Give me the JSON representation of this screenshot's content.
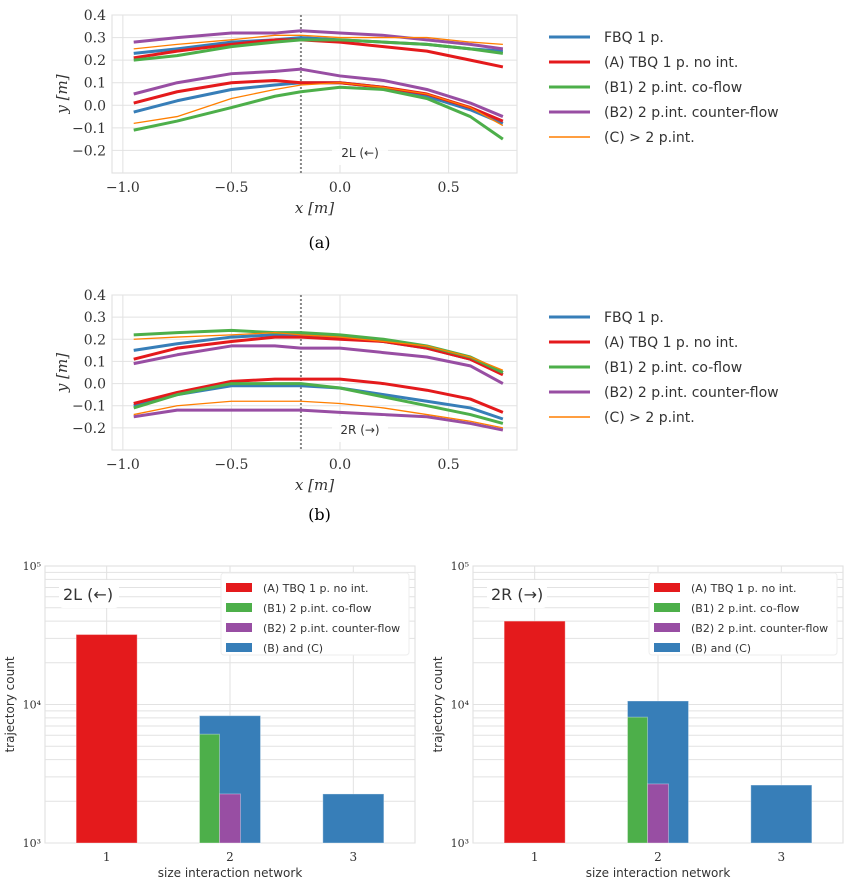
{
  "colors": {
    "FBQ": "#377eb8",
    "A": "#e41a1c",
    "B1": "#4daf4a",
    "B2": "#984ea3",
    "C": "#ff7f00"
  },
  "chart_data": [
    {
      "type": "line",
      "panel_label": "(a)",
      "annotation": "2L (←)",
      "xlabel": "x [m]",
      "ylabel": "y [m]",
      "xlim": [
        -1.05,
        0.815
      ],
      "ylim": [
        -0.3,
        0.4
      ],
      "grid": true,
      "xticks": [
        "−1.0",
        "−0.5",
        "0.0",
        "0.5"
      ],
      "xtick_values": [
        -1,
        -0.5,
        0,
        0.5
      ],
      "yticks": [
        "0.4",
        "0.3",
        "0.2",
        "0.1",
        "0.0",
        "−0.1",
        "−0.2"
      ],
      "ytick_values": [
        0.4,
        0.3,
        0.2,
        0.1,
        0,
        -0.1,
        -0.2
      ],
      "vline_x": -0.18,
      "legend_position": "right",
      "x": [
        -0.95,
        -0.75,
        -0.5,
        -0.3,
        -0.18,
        0,
        0.2,
        0.4,
        0.6,
        0.75
      ],
      "series": [
        {
          "name": "FBQ 1 p.",
          "key": "FBQ",
          "upper": [
            0.23,
            0.25,
            0.28,
            0.29,
            0.3,
            0.29,
            0.28,
            0.27,
            0.25,
            0.24
          ],
          "lower": [
            -0.03,
            0.02,
            0.07,
            0.09,
            0.1,
            0.1,
            0.08,
            0.04,
            -0.02,
            -0.08
          ]
        },
        {
          "name": "(A) TBQ 1 p.  no int.",
          "key": "A",
          "upper": [
            0.21,
            0.24,
            0.27,
            0.29,
            0.29,
            0.28,
            0.26,
            0.24,
            0.2,
            0.17
          ],
          "lower": [
            0.01,
            0.06,
            0.1,
            0.11,
            0.1,
            0.1,
            0.08,
            0.05,
            -0.01,
            -0.07
          ]
        },
        {
          "name": "(B1) 2 p.int.  co-flow",
          "key": "B1",
          "upper": [
            0.2,
            0.22,
            0.26,
            0.28,
            0.29,
            0.29,
            0.28,
            0.27,
            0.25,
            0.23
          ],
          "lower": [
            -0.11,
            -0.07,
            -0.01,
            0.04,
            0.06,
            0.08,
            0.07,
            0.03,
            -0.05,
            -0.15
          ]
        },
        {
          "name": "(B2) 2 p.int.  counter-flow",
          "key": "B2",
          "upper": [
            0.28,
            0.3,
            0.32,
            0.32,
            0.33,
            0.32,
            0.31,
            0.29,
            0.27,
            0.25
          ],
          "lower": [
            0.05,
            0.1,
            0.14,
            0.15,
            0.16,
            0.13,
            0.11,
            0.07,
            0.01,
            -0.05
          ]
        },
        {
          "name": "(C) > 2 p.int.",
          "key": "C",
          "upper": [
            0.25,
            0.27,
            0.29,
            0.31,
            0.31,
            0.3,
            0.3,
            0.3,
            0.28,
            0.27
          ],
          "lower": [
            -0.08,
            -0.05,
            0.03,
            0.07,
            0.09,
            0.1,
            0.08,
            0.05,
            -0.01,
            -0.09
          ]
        }
      ]
    },
    {
      "type": "line",
      "panel_label": "(b)",
      "annotation": "2R (→)",
      "xlabel": "x [m]",
      "ylabel": "y [m]",
      "xlim": [
        -1.05,
        0.815
      ],
      "ylim": [
        -0.3,
        0.4
      ],
      "grid": true,
      "xticks": [
        "−1.0",
        "−0.5",
        "0.0",
        "0.5"
      ],
      "xtick_values": [
        -1,
        -0.5,
        0,
        0.5
      ],
      "yticks": [
        "0.4",
        "0.3",
        "0.2",
        "0.1",
        "0.0",
        "−0.1",
        "−0.2"
      ],
      "ytick_values": [
        0.4,
        0.3,
        0.2,
        0.1,
        0,
        -0.1,
        -0.2
      ],
      "vline_x": -0.18,
      "legend_position": "right",
      "x": [
        -0.95,
        -0.75,
        -0.5,
        -0.3,
        -0.18,
        0,
        0.2,
        0.4,
        0.6,
        0.75
      ],
      "series": [
        {
          "name": "FBQ 1 p.",
          "key": "FBQ",
          "upper": [
            0.15,
            0.18,
            0.21,
            0.22,
            0.22,
            0.21,
            0.19,
            0.16,
            0.11,
            0.05
          ],
          "lower": [
            -0.1,
            -0.05,
            -0.01,
            -0.01,
            -0.01,
            -0.02,
            -0.05,
            -0.08,
            -0.11,
            -0.16
          ]
        },
        {
          "name": "(A) TBQ 1 p.  no int.",
          "key": "A",
          "upper": [
            0.11,
            0.16,
            0.19,
            0.21,
            0.21,
            0.2,
            0.19,
            0.16,
            0.11,
            0.04
          ],
          "lower": [
            -0.09,
            -0.04,
            0.01,
            0.02,
            0.02,
            0.02,
            0.0,
            -0.03,
            -0.07,
            -0.13
          ]
        },
        {
          "name": "(B1) 2 p.int.  co-flow",
          "key": "B1",
          "upper": [
            0.22,
            0.23,
            0.24,
            0.23,
            0.23,
            0.22,
            0.2,
            0.17,
            0.12,
            0.05
          ],
          "lower": [
            -0.11,
            -0.05,
            0.0,
            0.0,
            0.0,
            -0.02,
            -0.06,
            -0.1,
            -0.14,
            -0.18
          ]
        },
        {
          "name": "(B2) 2 p.int.  counter-flow",
          "key": "B2",
          "upper": [
            0.09,
            0.13,
            0.17,
            0.17,
            0.16,
            0.16,
            0.14,
            0.12,
            0.08,
            0.0
          ],
          "lower": [
            -0.15,
            -0.12,
            -0.12,
            -0.12,
            -0.12,
            -0.13,
            -0.14,
            -0.15,
            -0.18,
            -0.21
          ]
        },
        {
          "name": "(C) > 2 p.int.",
          "key": "C",
          "upper": [
            0.2,
            0.21,
            0.22,
            0.23,
            0.22,
            0.21,
            0.19,
            0.17,
            0.12,
            0.06
          ],
          "lower": [
            -0.14,
            -0.1,
            -0.08,
            -0.08,
            -0.08,
            -0.09,
            -0.11,
            -0.14,
            -0.17,
            -0.2
          ]
        }
      ]
    },
    {
      "type": "bar",
      "annotation": "2L (←)",
      "xlabel": "size interaction network",
      "ylabel": "trajectory count",
      "yscale": "log",
      "ylim": [
        1000,
        100000
      ],
      "grid": true,
      "legend_position": "top-right",
      "categories": [
        "1",
        "2",
        "3"
      ],
      "series": [
        {
          "name": "(A) TBQ 1 p.  no int.",
          "key": "A",
          "values": [
            32000,
            null,
            null
          ]
        },
        {
          "name": "(B1) 2 p.int.  co-flow",
          "key": "B1",
          "values": [
            null,
            6100,
            null
          ]
        },
        {
          "name": "(B2) 2 p.int.  counter-flow",
          "key": "B2",
          "values": [
            null,
            2260,
            null
          ]
        },
        {
          "name": "(B) and (C)",
          "key": "FBQ",
          "values": [
            null,
            8300,
            2260
          ]
        }
      ]
    },
    {
      "type": "bar",
      "annotation": "2R (→)",
      "xlabel": "size interaction network",
      "ylabel": "trajectory count",
      "yscale": "log",
      "ylim": [
        1000,
        100000
      ],
      "grid": true,
      "legend_position": "top-right",
      "categories": [
        "1",
        "2",
        "3"
      ],
      "series": [
        {
          "name": "(A) TBQ 1 p.  no int.",
          "key": "A",
          "values": [
            40000,
            null,
            null
          ]
        },
        {
          "name": "(B1) 2 p.int.  co-flow",
          "key": "B1",
          "values": [
            null,
            8100,
            null
          ]
        },
        {
          "name": "(B2) 2 p.int.  counter-flow",
          "key": "B2",
          "values": [
            null,
            2670,
            null
          ]
        },
        {
          "name": "(B) and (C)",
          "key": "FBQ",
          "values": [
            null,
            10600,
            2620
          ]
        }
      ]
    }
  ],
  "bar_yticks": [
    "10³",
    "10⁴",
    "10⁵"
  ]
}
